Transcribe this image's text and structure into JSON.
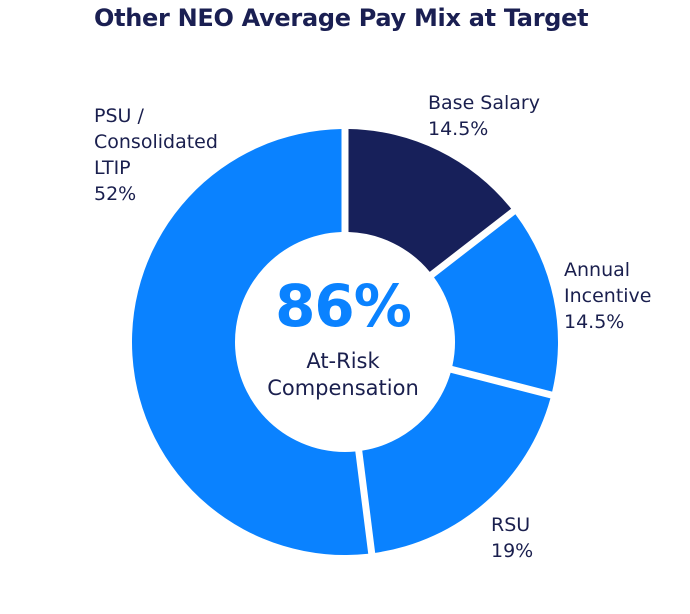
{
  "chart_data": {
    "type": "pie",
    "variant": "donut",
    "title": "Other NEO Average Pay Mix at Target",
    "center": {
      "value": "86%",
      "caption_lines": [
        "At-Risk",
        "Compensation"
      ]
    },
    "slices": [
      {
        "label_lines": [
          "Base Salary"
        ],
        "value": 14.5,
        "value_label": "14.5%",
        "color": "#17205a"
      },
      {
        "label_lines": [
          "Annual",
          "Incentive"
        ],
        "value": 14.5,
        "value_label": "14.5%",
        "color": "#0a82ff"
      },
      {
        "label_lines": [
          "RSU"
        ],
        "value": 19,
        "value_label": "19%",
        "color": "#0a82ff"
      },
      {
        "label_lines": [
          "PSU /",
          "Consolidated",
          "LTIP"
        ],
        "value": 52,
        "value_label": "52%",
        "color": "#0a82ff"
      }
    ],
    "start_angle_deg": 0,
    "direction": "clockwise"
  },
  "colors": {
    "accent": "#0a82ff",
    "dark": "#17205a",
    "text": "#1a1f4e"
  }
}
